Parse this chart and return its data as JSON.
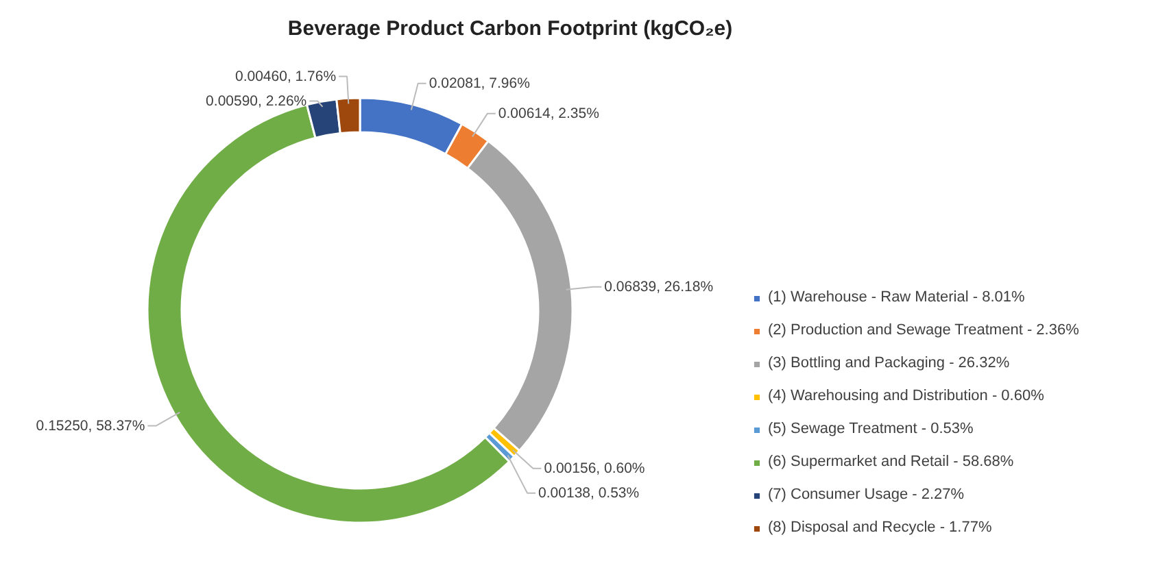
{
  "chart_data": {
    "type": "donut",
    "title": "Beverage Product Carbon Footprint (kgCO₂e)",
    "categories": [
      "(1) Warehouse - Raw Material - 8.01%",
      "(2) Production and Sewage Treatment - 2.36%",
      "(3) Bottling and Packaging - 26.32%",
      "(4) Warehousing and Distribution - 0.60%",
      "(5) Sewage Treatment - 0.53%",
      "(6) Supermarket and Retail - 58.68%",
      "(7) Consumer Usage - 2.27%",
      "(8) Disposal and Recycle - 1.77%"
    ],
    "values": [
      0.02081,
      0.00614,
      0.06839,
      0.00156,
      0.00138,
      0.1525,
      0.0059,
      0.0046
    ],
    "value_labels": [
      "0.02081, 7.96%",
      "0.00614, 2.35%",
      "0.06839, 26.18%",
      "0.00156, 0.60%",
      "0.00138, 0.53%",
      "0.15250, 58.37%",
      "0.00590, 2.26%",
      "0.00460, 1.76%"
    ],
    "colors": [
      "#4472c4",
      "#ed7d31",
      "#a5a5a5",
      "#ffc000",
      "#5b9bd5",
      "#70ad47",
      "#264478",
      "#9e480e"
    ],
    "legend": "right"
  }
}
